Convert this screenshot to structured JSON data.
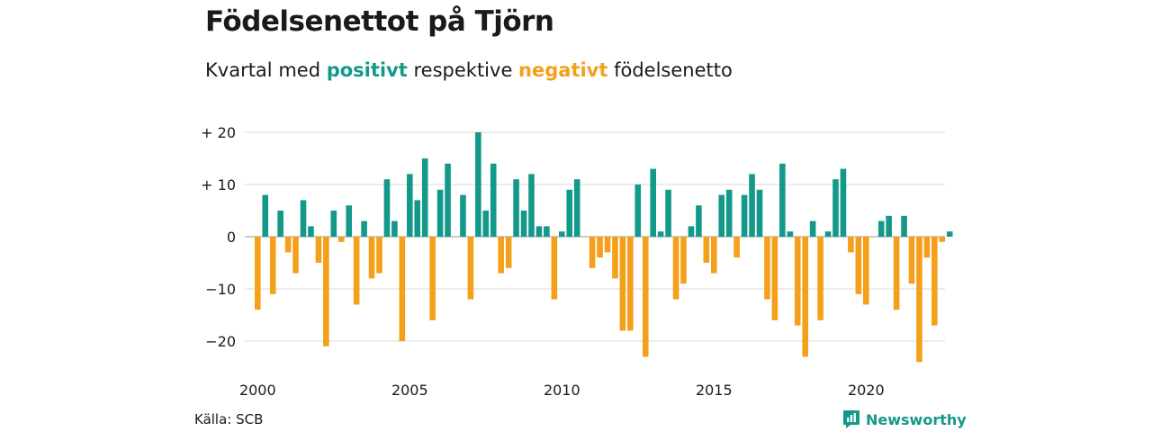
{
  "header": {
    "title": "Födelsenettot på Tjörn",
    "subtitle_pre": "Kvartal med ",
    "subtitle_pos": "positivt",
    "subtitle_mid": " respektive ",
    "subtitle_neg": "negativt",
    "subtitle_post": " födelsenetto"
  },
  "footer": {
    "source": "Källa: SCB",
    "brand": "Newsworthy",
    "logo_icon": "bar-chart-speech-icon"
  },
  "colors": {
    "positive": "#13998a",
    "negative": "#f5a01a",
    "grid": "#d9d9d9",
    "text": "#1a1a1a"
  },
  "chart_data": {
    "type": "bar",
    "title": "Födelsenettot på Tjörn",
    "subtitle": "Kvartal med positivt respektive negativt födelsenetto",
    "xlabel": "",
    "ylabel": "",
    "x_start": "2000 Q1",
    "period": "quarter",
    "ylim": [
      -25,
      21
    ],
    "yticks": [
      20,
      10,
      0,
      -10,
      -20
    ],
    "ytick_labels": [
      "+ 20",
      "+ 10",
      "0",
      "−10",
      "−20"
    ],
    "xticks": [
      2000,
      2005,
      2010,
      2015,
      2020
    ],
    "grid": true,
    "values": [
      -14,
      8,
      -11,
      5,
      -3,
      -7,
      7,
      2,
      -5,
      -21,
      5,
      -1,
      6,
      -13,
      3,
      -8,
      -7,
      11,
      3,
      -20,
      12,
      7,
      15,
      -16,
      9,
      14,
      0,
      8,
      -12,
      20,
      5,
      14,
      -7,
      -6,
      11,
      5,
      12,
      2,
      2,
      -12,
      1,
      9,
      11,
      0,
      -6,
      -4,
      -3,
      -8,
      -18,
      -18,
      10,
      -23,
      13,
      1,
      9,
      -12,
      -9,
      2,
      6,
      -5,
      -7,
      8,
      9,
      -4,
      8,
      12,
      9,
      -12,
      -16,
      14,
      1,
      -17,
      -23,
      3,
      -16,
      1,
      11,
      13,
      -3,
      -11,
      -13,
      0,
      3,
      4,
      -14,
      4,
      -9,
      -24,
      -4,
      -17,
      -1,
      1
    ]
  }
}
